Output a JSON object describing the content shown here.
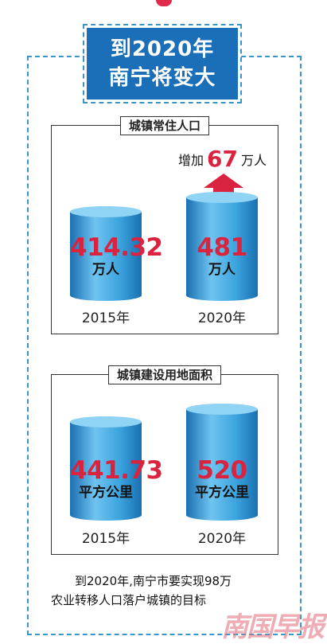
{
  "title": {
    "line1": "到2020年",
    "line2": "南宁将变大"
  },
  "chart_data": [
    {
      "type": "bar",
      "title": "城镇常住人口",
      "categories": [
        "2015年",
        "2020年"
      ],
      "values": [
        414.32,
        481
      ],
      "value_labels": [
        "414.32",
        "481"
      ],
      "unit": "万人",
      "annotation": {
        "prefix": "增加",
        "value": "67",
        "suffix": "万人"
      }
    },
    {
      "type": "bar",
      "title": "城镇建设用地面积",
      "categories": [
        "2015年",
        "2020年"
      ],
      "values": [
        441.73,
        520
      ],
      "value_labels": [
        "441.73",
        "520"
      ],
      "unit": "平方公里"
    }
  ],
  "note": {
    "line1": "到2020年,南宁市要实现98万",
    "line2": "农业转移人口落户城镇的目标"
  },
  "watermark": "南国早报",
  "colors": {
    "accent": "#d9233f",
    "cylinder": "#2a8fd0",
    "title_bg": "#1b6fb8",
    "frame": "#3a96c9"
  }
}
